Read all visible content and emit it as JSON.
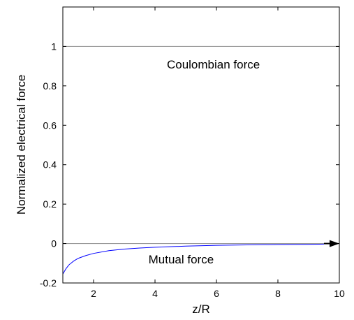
{
  "chart_data": {
    "type": "line",
    "title": "",
    "xlabel": "z/R",
    "ylabel": "Normalized electrical force",
    "xlim": [
      1,
      10
    ],
    "ylim": [
      -0.2,
      1.2
    ],
    "x_ticks": [
      2,
      4,
      6,
      8,
      10
    ],
    "y_ticks": [
      -0.2,
      0,
      0.2,
      0.4,
      0.6,
      0.8,
      1
    ],
    "x_tick_labels": [
      "2",
      "4",
      "6",
      "8",
      "10"
    ],
    "y_tick_labels": [
      "-0.2",
      "0",
      "0.2",
      "0.4",
      "0.6",
      "0.8",
      "1"
    ],
    "grid": false,
    "reference_lines": [
      {
        "y": 1,
        "color": "#999999"
      },
      {
        "y": 0,
        "color": "#999999"
      }
    ],
    "annotations": [
      {
        "text": "Coulombian force",
        "x": 5.9,
        "y": 0.91
      },
      {
        "text": "Mutual force",
        "x": 4.85,
        "y": -0.08
      }
    ],
    "series": [
      {
        "color": "#0000ff",
        "x": [
          1.0,
          1.1,
          1.2,
          1.35,
          1.5,
          1.75,
          2.0,
          2.5,
          3.0,
          3.5,
          4.0,
          5.0,
          6.0,
          7.0,
          8.0,
          9.0,
          9.5
        ],
        "y": [
          -0.155,
          -0.128,
          -0.108,
          -0.089,
          -0.075,
          -0.061,
          -0.05,
          -0.036,
          -0.028,
          -0.023,
          -0.019,
          -0.013,
          -0.009,
          -0.007,
          -0.005,
          -0.004,
          -0.003
        ]
      }
    ],
    "arrow": {
      "from": [
        9.5,
        0
      ],
      "to": [
        10,
        0
      ],
      "color": "#000000"
    }
  }
}
